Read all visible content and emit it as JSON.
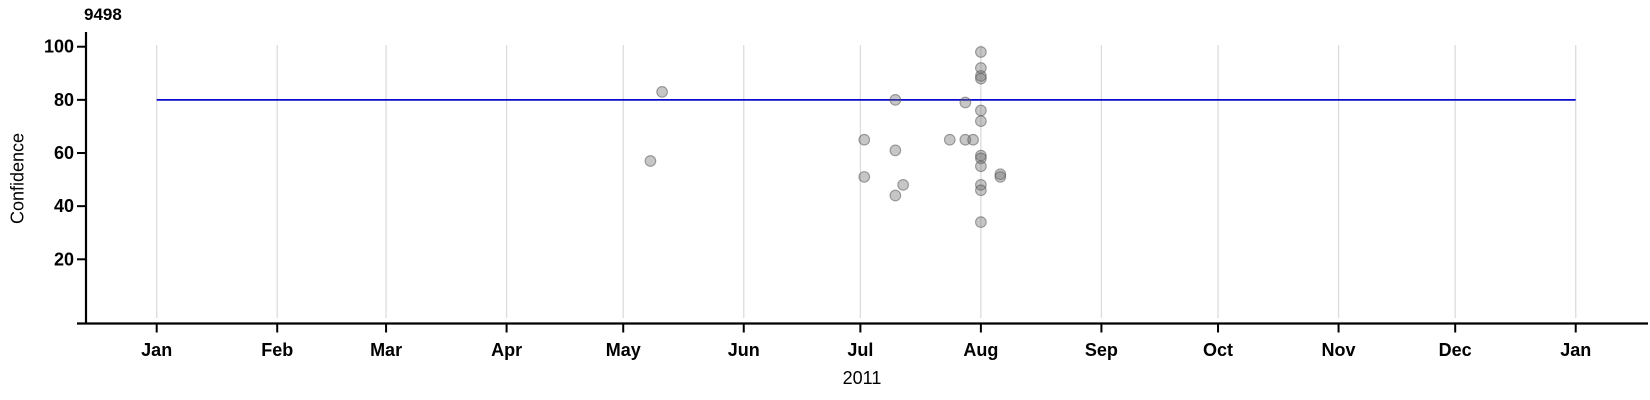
{
  "chart_data": {
    "type": "scatter",
    "title": "9498",
    "xlabel": "2011",
    "ylabel": "Confidence",
    "x_axis": {
      "unit": "months",
      "tick_labels": [
        "Jan",
        "Feb",
        "Mar",
        "Apr",
        "May",
        "Jun",
        "Jul",
        "Aug",
        "Sep",
        "Oct",
        "Nov",
        "Dec",
        "Jan"
      ],
      "range": [
        "2011-01-01",
        "2012-01-01"
      ],
      "grid": true
    },
    "y_axis": {
      "ticks": [
        20,
        40,
        60,
        80,
        100
      ],
      "range": [
        0,
        105
      ],
      "grid": false
    },
    "legend": "none",
    "reference_line": {
      "axis": "y",
      "value": 80
    },
    "points": [
      {
        "date": "2011-05-08",
        "confidence": 57
      },
      {
        "date": "2011-05-11",
        "confidence": 83
      },
      {
        "date": "2011-07-02",
        "confidence": 65
      },
      {
        "date": "2011-07-02",
        "confidence": 51
      },
      {
        "date": "2011-07-10",
        "confidence": 80
      },
      {
        "date": "2011-07-10",
        "confidence": 61
      },
      {
        "date": "2011-07-10",
        "confidence": 44
      },
      {
        "date": "2011-07-12",
        "confidence": 48
      },
      {
        "date": "2011-07-24",
        "confidence": 65
      },
      {
        "date": "2011-07-28",
        "confidence": 65
      },
      {
        "date": "2011-07-30",
        "confidence": 65
      },
      {
        "date": "2011-07-28",
        "confidence": 79
      },
      {
        "date": "2011-08-01",
        "confidence": 98
      },
      {
        "date": "2011-08-01",
        "confidence": 92
      },
      {
        "date": "2011-08-01",
        "confidence": 89
      },
      {
        "date": "2011-08-01",
        "confidence": 88
      },
      {
        "date": "2011-08-01",
        "confidence": 76
      },
      {
        "date": "2011-08-01",
        "confidence": 72
      },
      {
        "date": "2011-08-01",
        "confidence": 59
      },
      {
        "date": "2011-08-01",
        "confidence": 58
      },
      {
        "date": "2011-08-01",
        "confidence": 55
      },
      {
        "date": "2011-08-01",
        "confidence": 48
      },
      {
        "date": "2011-08-01",
        "confidence": 46
      },
      {
        "date": "2011-08-01",
        "confidence": 34
      },
      {
        "date": "2011-08-06",
        "confidence": 52
      },
      {
        "date": "2011-08-06",
        "confidence": 51
      }
    ]
  },
  "colors": {
    "reference_line": "#0a0ace",
    "point_fill": "#6a6a6a",
    "point_stroke": "#555555",
    "gridline": "#dcdcdc",
    "axis": "#000000",
    "text": "#000000",
    "background": "#ffffff"
  }
}
